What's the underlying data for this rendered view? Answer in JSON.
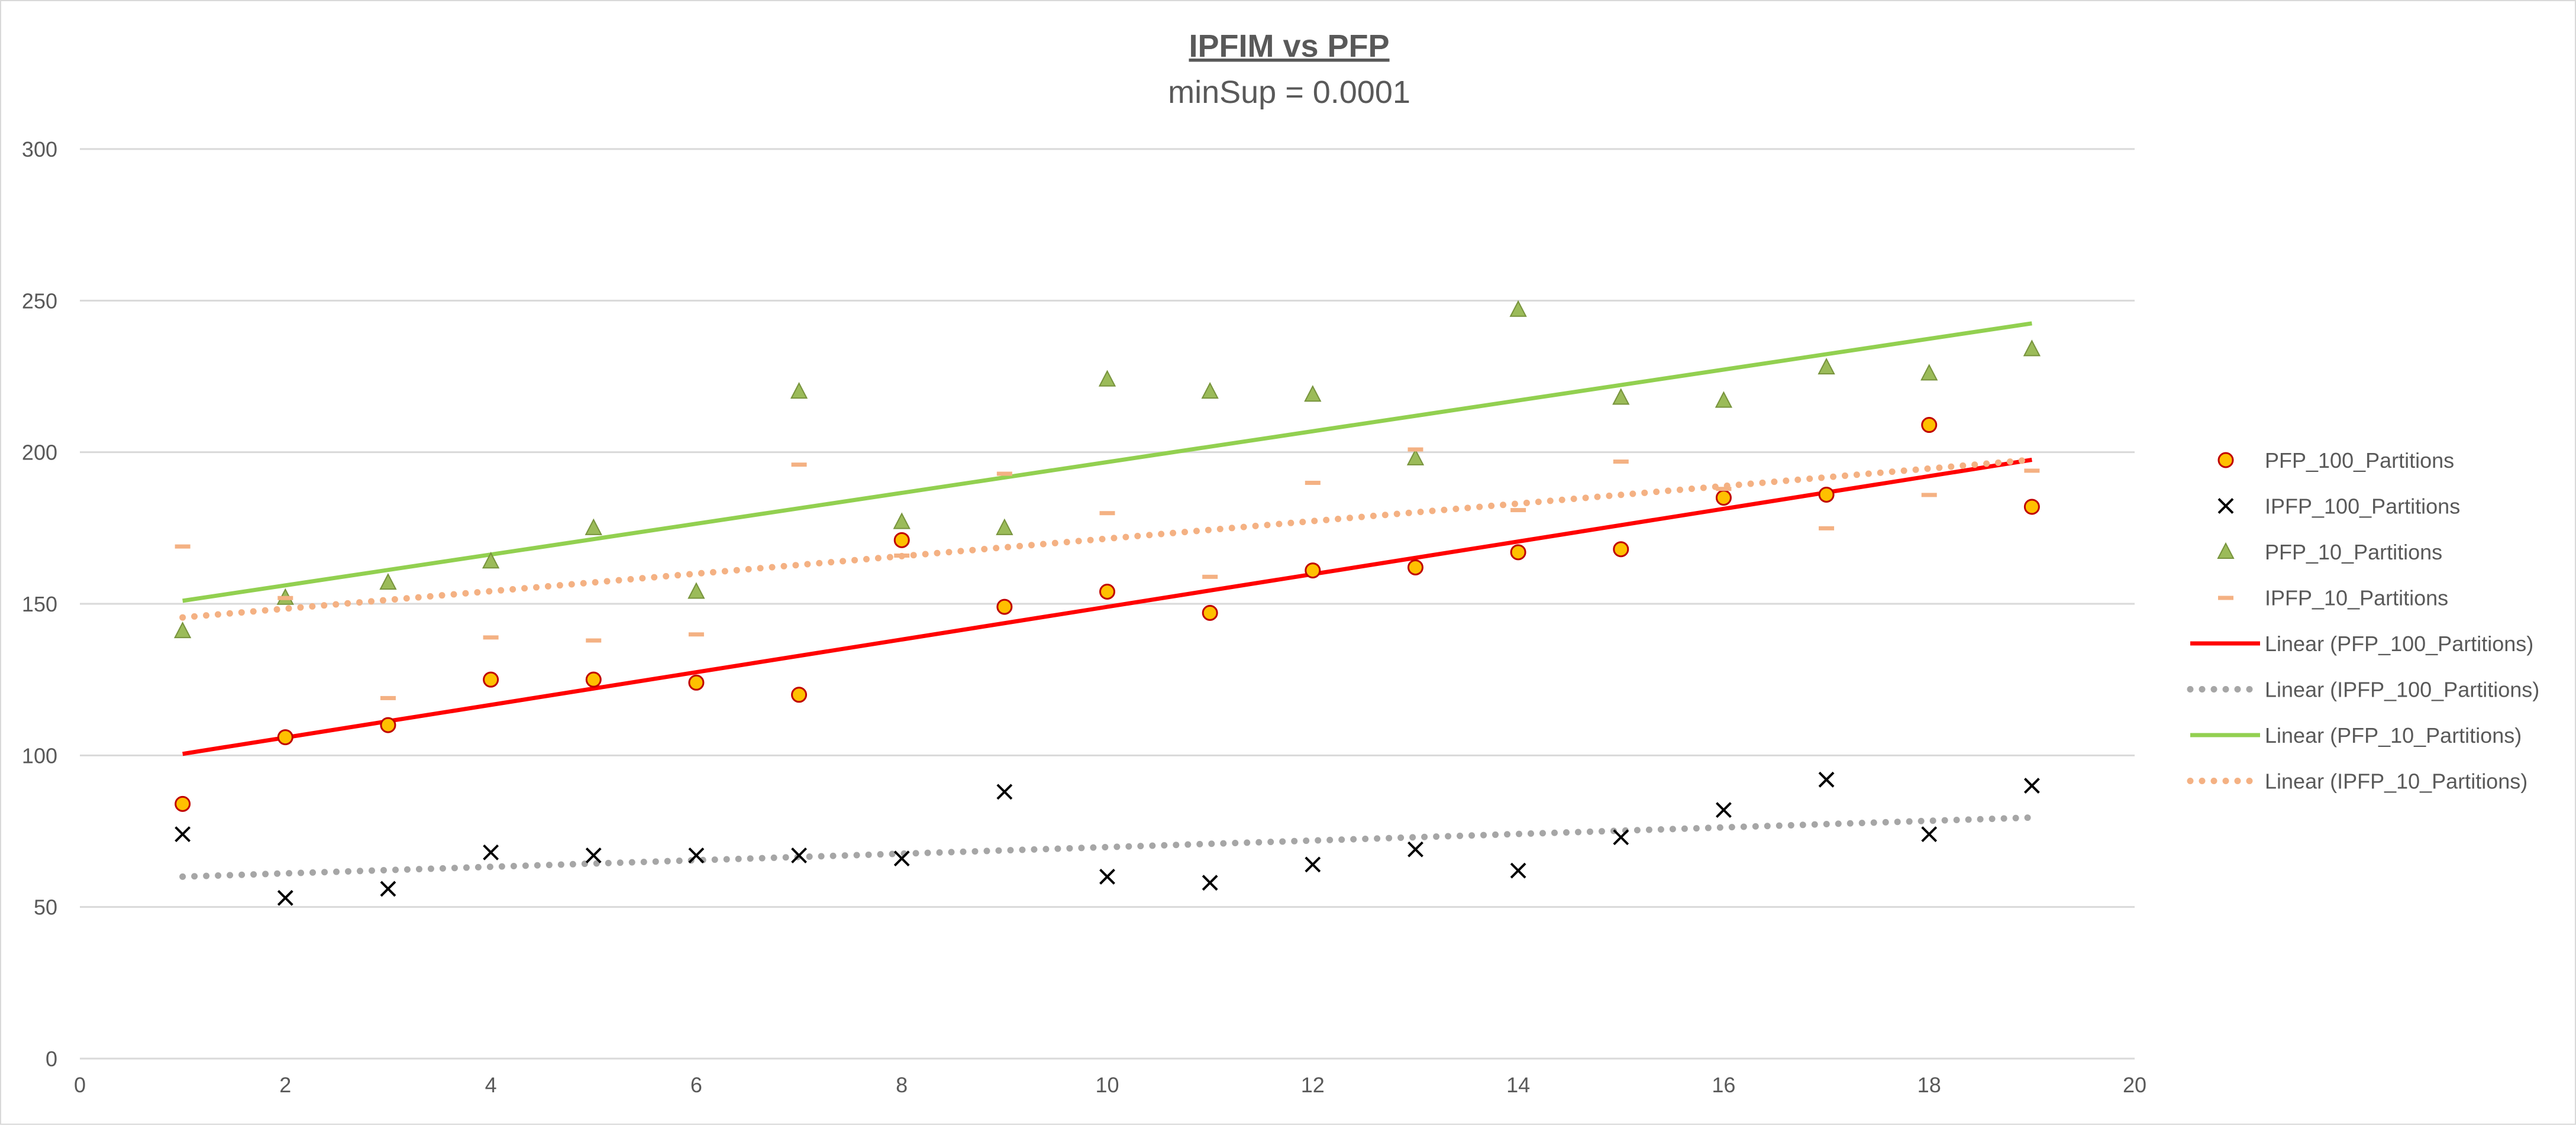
{
  "chart_data": {
    "type": "scatter",
    "title": "IPFIM vs PFP",
    "subtitle": "minSup = 0.0001",
    "xlim": [
      0,
      20
    ],
    "ylim": [
      0,
      300
    ],
    "x_ticks": [
      0,
      2,
      4,
      6,
      8,
      10,
      12,
      14,
      16,
      18,
      20
    ],
    "y_ticks": [
      0,
      50,
      100,
      150,
      200,
      250,
      300
    ],
    "grid": "horizontal",
    "legend_position": "right",
    "x": [
      1,
      2,
      3,
      4,
      5,
      6,
      7,
      8,
      9,
      10,
      11,
      12,
      13,
      14,
      15,
      16,
      17,
      18,
      19
    ],
    "series": [
      {
        "name": "PFP_100_Partitions",
        "marker": "circle",
        "color": "#FFC000",
        "edge": "#C00000",
        "values": [
          84,
          106,
          110,
          125,
          125,
          124,
          120,
          171,
          149,
          154,
          147,
          161,
          162,
          167,
          168,
          185,
          186,
          209,
          182
        ]
      },
      {
        "name": "IPFP_100_Partitions",
        "marker": "x",
        "color": "#000000",
        "values": [
          74,
          53,
          56,
          68,
          67,
          67,
          67,
          66,
          88,
          60,
          58,
          64,
          69,
          62,
          73,
          82,
          92,
          74,
          90
        ]
      },
      {
        "name": "PFP_10_Partitions",
        "marker": "triangle",
        "color": "#9BBB59",
        "edge": "#77933C",
        "values": [
          141,
          152,
          157,
          164,
          175,
          154,
          220,
          177,
          175,
          224,
          220,
          219,
          198,
          247,
          218,
          217,
          228,
          226,
          234
        ]
      },
      {
        "name": "IPFP_10_Partitions",
        "marker": "dash",
        "color": "#F4B183",
        "values": [
          169,
          152,
          119,
          139,
          138,
          140,
          196,
          166,
          193,
          180,
          159,
          190,
          201,
          181,
          197,
          188,
          175,
          186,
          194
        ]
      }
    ],
    "trendlines": [
      {
        "name": "Linear (PFP_100_Partitions)",
        "style": "solid",
        "color": "#FF0000",
        "x": [
          1,
          19
        ],
        "y": [
          100.5,
          197.5
        ]
      },
      {
        "name": "Linear (IPFP_100_Partitions)",
        "style": "dotted",
        "color": "#A6A6A6",
        "x": [
          1,
          19
        ],
        "y": [
          60,
          79.5
        ]
      },
      {
        "name": "Linear (PFP_10_Partitions)",
        "style": "solid",
        "color": "#92D050",
        "x": [
          1,
          19
        ],
        "y": [
          151,
          242.5
        ]
      },
      {
        "name": "Linear (IPFP_10_Partitions)",
        "style": "dotted",
        "color": "#F4B183",
        "x": [
          1,
          19
        ],
        "y": [
          145.5,
          197.5
        ]
      }
    ]
  }
}
